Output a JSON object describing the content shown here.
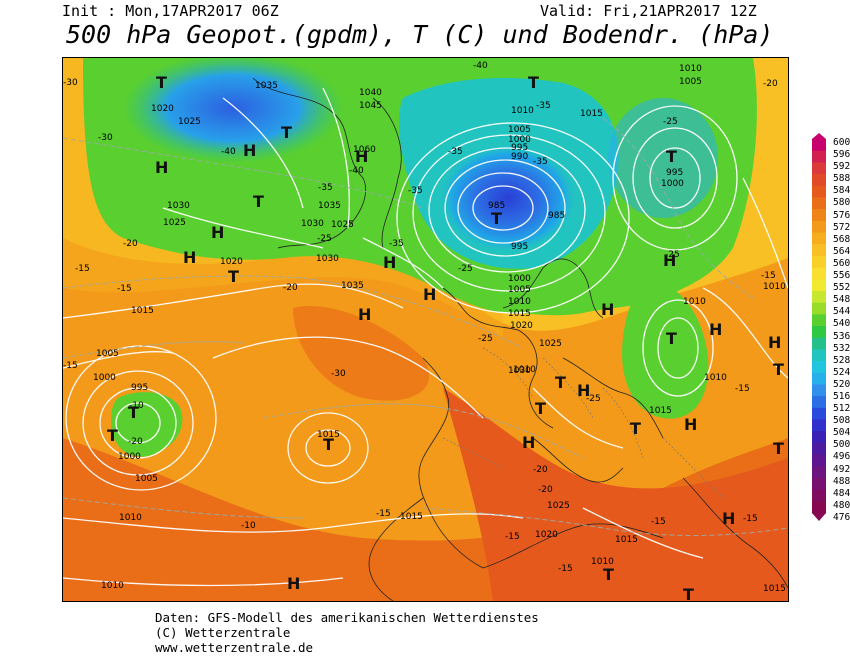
{
  "header": {
    "init": "Init : Mon,17APR2017 06Z",
    "valid": "Valid: Fri,21APR2017 12Z",
    "title": "500 hPa Geopot.(gpdm), T (C) und Bodendr. (hPa)"
  },
  "footer": {
    "line1": "Daten: GFS-Modell des amerikanischen Wetterdienstes",
    "line2": "(C) Wetterzentrale",
    "line3": "www.wetterzentrale.de"
  },
  "legend": {
    "values": [
      "600",
      "596",
      "592",
      "588",
      "584",
      "580",
      "576",
      "572",
      "568",
      "564",
      "560",
      "556",
      "552",
      "548",
      "544",
      "540",
      "536",
      "532",
      "528",
      "524",
      "520",
      "516",
      "512",
      "508",
      "504",
      "500",
      "496",
      "492",
      "488",
      "484",
      "480",
      "476"
    ],
    "colors": [
      "#c8006e",
      "#d22050",
      "#dc3a3a",
      "#e04a26",
      "#e55a1c",
      "#ea6e18",
      "#ef8418",
      "#f39a1a",
      "#f6ae1e",
      "#f8c024",
      "#f9d02a",
      "#fadf30",
      "#f0ea30",
      "#c8e830",
      "#9adc2a",
      "#5acf30",
      "#2fc842",
      "#26c08a",
      "#22c4bf",
      "#20c6e0",
      "#28b0ea",
      "#3090ec",
      "#2c6ee4",
      "#2a4adb",
      "#3030cc",
      "#3a20b4",
      "#4c1aa0",
      "#5e1690",
      "#6c1480",
      "#781070",
      "#800c60",
      "#860850"
    ]
  },
  "map": {
    "pressure_labels": [
      "1020",
      "1025",
      "1030",
      "1025",
      "1035",
      "1040",
      "1045",
      "1060",
      "1035",
      "1030",
      "1025",
      "1030",
      "1010",
      "1005",
      "1000",
      "995",
      "990",
      "985",
      "995",
      "1000",
      "1005",
      "1010",
      "1015",
      "1020",
      "1025",
      "1030",
      "1010",
      "1005",
      "1000",
      "995",
      "1015",
      "1010",
      "1005",
      "1000",
      "995",
      "985",
      "1000",
      "1005",
      "1010",
      "1015",
      "1035",
      "1020",
      "1015",
      "1015",
      "1010",
      "1015",
      "1010",
      "1015",
      "1010",
      "1020",
      "1025",
      "1010",
      "1015",
      "1010"
    ],
    "temp_labels": [
      "-30",
      "-40",
      "-30",
      "-35",
      "-40",
      "-35",
      "-35",
      "-35",
      "-40",
      "-35",
      "-35",
      "-25",
      "-25",
      "-20",
      "-15",
      "-15",
      "-15",
      "-20",
      "-25",
      "-30",
      "-20",
      "-25",
      "-25",
      "-25",
      "-20",
      "-20",
      "-15",
      "-15",
      "-15",
      "-10",
      "-15",
      "-15",
      "-20",
      "-10",
      "-15",
      "-15"
    ],
    "high_markers": [
      "H",
      "H",
      "H",
      "H",
      "H",
      "H",
      "H",
      "H",
      "H",
      "H",
      "H",
      "H",
      "H",
      "H",
      "H",
      "H",
      "H"
    ],
    "low_markers": [
      "T",
      "T",
      "T",
      "T",
      "T",
      "T",
      "T",
      "T",
      "T",
      "T",
      "T",
      "T",
      "T",
      "T",
      "T",
      "T",
      "T",
      "T"
    ]
  }
}
